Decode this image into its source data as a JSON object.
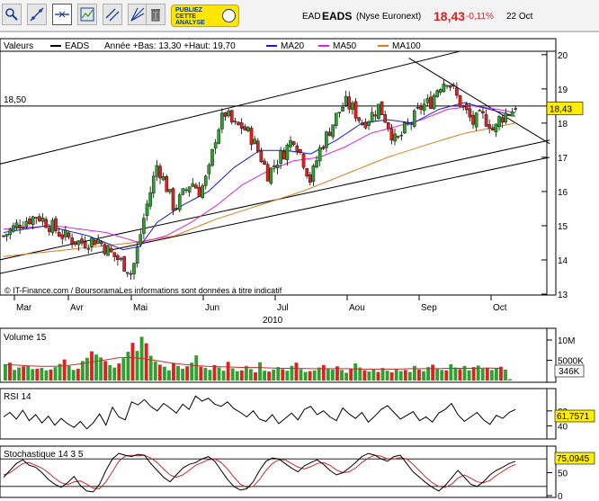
{
  "header": {
    "ticker": "EAD",
    "name": "EADS",
    "exchange": "(Nyse Euronext)",
    "price": "18,43",
    "change": "-0,11%",
    "date": "22 Oct",
    "publicity": [
      "PUBLIEZ",
      "CETTE",
      "ANALYSE"
    ]
  },
  "toolbar": {
    "buttons": [
      "zoom-icon",
      "trendline-icon",
      "horizontal-line-icon",
      "indicator-icon",
      "parallel-channel-icon",
      "fan-icon",
      "delete-icon"
    ]
  },
  "colors": {
    "up": "#2fa02f",
    "down": "#e02020",
    "ma20": "#1a1acd",
    "ma50": "#dd22dd",
    "ma100": "#e07b1a",
    "volume_avg": "#cc2a2a",
    "price_tag": "#ffee00"
  },
  "chart_data": [
    {
      "type": "candlestick",
      "legend": [
        {
          "label": "Valeurs",
          "swatch": "none"
        },
        {
          "label": "EADS",
          "swatch": "#000000"
        },
        {
          "label": "Année +Bas: 13,30 +Haut: 19,70",
          "swatch": "none"
        },
        {
          "label": "MA20",
          "swatch": "#1a1acd"
        },
        {
          "label": "MA50",
          "swatch": "#dd22dd"
        },
        {
          "label": "MA100",
          "swatch": "#e07b1a"
        }
      ],
      "y_ticks": [
        "20",
        "19",
        "18",
        "17",
        "16",
        "15",
        "14",
        "13"
      ],
      "ylim": [
        13,
        20.1
      ],
      "months": [
        "Mar",
        "Avr",
        "Mai",
        "Jun",
        "Jul",
        "Aou",
        "Sep",
        "Oct"
      ],
      "year": "2010",
      "reference_level": {
        "label": "18,50",
        "value": 18.5
      },
      "last_price_label": "18,43",
      "last_price": 18.43,
      "credit": "© IT-Finance.com / BoursoramaLes informations sont données à titre indicatif",
      "close_points": [
        [
          0,
          14.7
        ],
        [
          8,
          15.1
        ],
        [
          16,
          15.3
        ],
        [
          22,
          15.0
        ],
        [
          28,
          14.7
        ],
        [
          36,
          14.5
        ],
        [
          44,
          14.6
        ],
        [
          50,
          14.2
        ],
        [
          56,
          13.9
        ],
        [
          60,
          13.6
        ],
        [
          62,
          14.1
        ],
        [
          66,
          15.3
        ],
        [
          70,
          16.3
        ],
        [
          72,
          16.8
        ],
        [
          76,
          16.2
        ],
        [
          80,
          15.5
        ],
        [
          84,
          15.9
        ],
        [
          88,
          16.3
        ],
        [
          92,
          16.0
        ],
        [
          96,
          16.5
        ],
        [
          100,
          17.8
        ],
        [
          104,
          18.3
        ],
        [
          108,
          17.9
        ],
        [
          112,
          17.9
        ],
        [
          116,
          17.6
        ],
        [
          120,
          17.1
        ],
        [
          124,
          16.5
        ],
        [
          128,
          16.9
        ],
        [
          132,
          17.2
        ],
        [
          136,
          17.6
        ],
        [
          140,
          17.0
        ],
        [
          144,
          16.3
        ],
        [
          148,
          17.2
        ],
        [
          152,
          17.7
        ],
        [
          156,
          18.2
        ],
        [
          160,
          18.6
        ],
        [
          164,
          18.4
        ],
        [
          168,
          18.0
        ],
        [
          172,
          18.2
        ],
        [
          176,
          18.5
        ],
        [
          180,
          18.0
        ],
        [
          184,
          17.4
        ],
        [
          188,
          17.8
        ],
        [
          192,
          18.1
        ],
        [
          196,
          18.5
        ],
        [
          200,
          18.6
        ],
        [
          204,
          19.1
        ],
        [
          208,
          19.3
        ],
        [
          212,
          18.8
        ],
        [
          216,
          18.4
        ],
        [
          220,
          18.0
        ],
        [
          224,
          18.2
        ],
        [
          228,
          18.0
        ],
        [
          230,
          17.7
        ],
        [
          232,
          18.1
        ],
        [
          236,
          18.3
        ],
        [
          240,
          18.43
        ]
      ],
      "ma20_points": [
        [
          0,
          14.8
        ],
        [
          20,
          15.0
        ],
        [
          40,
          14.7
        ],
        [
          56,
          14.3
        ],
        [
          64,
          14.4
        ],
        [
          72,
          15.1
        ],
        [
          84,
          15.6
        ],
        [
          96,
          16.0
        ],
        [
          108,
          16.7
        ],
        [
          120,
          17.2
        ],
        [
          132,
          17.2
        ],
        [
          144,
          17.1
        ],
        [
          156,
          17.5
        ],
        [
          168,
          18.0
        ],
        [
          180,
          18.1
        ],
        [
          192,
          18.0
        ],
        [
          204,
          18.4
        ],
        [
          216,
          18.6
        ],
        [
          228,
          18.4
        ],
        [
          240,
          18.2
        ]
      ],
      "ma50_points": [
        [
          0,
          14.9
        ],
        [
          24,
          15.0
        ],
        [
          48,
          14.8
        ],
        [
          64,
          14.5
        ],
        [
          76,
          14.7
        ],
        [
          88,
          15.1
        ],
        [
          100,
          15.6
        ],
        [
          112,
          16.2
        ],
        [
          124,
          16.6
        ],
        [
          136,
          16.9
        ],
        [
          148,
          17.0
        ],
        [
          160,
          17.3
        ],
        [
          172,
          17.7
        ],
        [
          184,
          17.9
        ],
        [
          196,
          18.1
        ],
        [
          208,
          18.4
        ],
        [
          220,
          18.5
        ],
        [
          232,
          18.4
        ],
        [
          240,
          18.3
        ]
      ],
      "ma100_points": [
        [
          0,
          14.1
        ],
        [
          30,
          14.3
        ],
        [
          60,
          14.5
        ],
        [
          80,
          14.7
        ],
        [
          100,
          15.2
        ],
        [
          120,
          15.6
        ],
        [
          140,
          16.0
        ],
        [
          160,
          16.5
        ],
        [
          180,
          17.0
        ],
        [
          200,
          17.4
        ],
        [
          216,
          17.7
        ],
        [
          232,
          17.9
        ],
        [
          240,
          18.0
        ]
      ],
      "trendlines": [
        {
          "from": [
            -2,
            16.8
          ],
          "to": [
            214,
            20.1
          ]
        },
        {
          "from": [
            -2,
            14.0
          ],
          "to": [
            256,
            17.5
          ]
        },
        {
          "from": [
            -2,
            13.6
          ],
          "to": [
            256,
            17.0
          ]
        },
        {
          "from": [
            190,
            19.9
          ],
          "to": [
            256,
            17.4
          ]
        }
      ]
    },
    {
      "type": "bar",
      "title": "Volume 15",
      "y_ticks": [
        "10M",
        "5000K"
      ],
      "ylim": [
        0,
        12000000
      ],
      "last_value_label": "346K",
      "values": [
        3800000,
        4400000,
        2600000,
        3200000,
        3500000,
        3700000,
        2800000,
        2900000,
        3100000,
        2500000,
        2700000,
        3300000,
        4100000,
        5200000,
        3600000,
        2600000,
        2900000,
        4800000,
        5600000,
        7200000,
        6400000,
        5700000,
        4800000,
        3800000,
        3200000,
        4200000,
        5500000,
        7100000,
        9300000,
        7300000,
        10800000,
        9200000,
        6100000,
        4700000,
        3900000,
        3400000,
        2500000,
        4300000,
        3600000,
        2900000,
        3500000,
        4400000,
        6200000,
        3400000,
        3100000,
        2600000,
        3800000,
        3200000,
        2400000,
        4600000,
        3000000,
        2300000,
        2500000,
        3600000,
        2800000,
        2000000,
        4500000,
        2400000,
        2200000,
        2700000,
        3300000,
        2800000,
        2400000,
        3600000,
        4400000,
        2800000,
        2100000,
        2300000,
        2500000,
        3200000,
        3800000,
        2900000,
        2700000,
        3500000,
        2600000,
        1900000,
        2800000,
        4200000,
        3200000,
        2500000,
        2200000,
        2700000,
        2100000,
        3100000,
        2400000,
        2000000,
        2800000,
        2300000,
        2600000,
        2100000,
        3600000,
        2700000,
        2300000,
        3300000,
        3900000,
        3000000,
        2600000,
        2500000,
        4000000,
        3200000,
        2800000,
        3600000,
        2500000,
        3300000,
        3700000,
        2900000,
        3100000,
        2600000,
        3000000,
        3400000,
        2700000,
        346000
      ],
      "average": [
        3900000,
        3800000,
        3600000,
        3500000,
        3500000,
        3700000,
        4100000,
        4600000,
        5100000,
        5600000,
        5700000,
        5400000,
        4900000,
        4400000,
        4000000,
        3700000,
        3500000,
        3400000,
        3300000,
        3200000,
        3200000,
        3100000,
        3000000,
        3000000,
        2900000,
        2900000,
        2900000,
        2900000,
        2800000,
        2800000,
        2800000,
        2800000,
        2900000,
        2900000,
        2900000,
        3000000,
        3000000,
        3000000,
        3100000,
        3000000
      ]
    },
    {
      "type": "line",
      "title": "RSI 14",
      "y_ticks": [
        "60",
        "40"
      ],
      "ylim": [
        25,
        85
      ],
      "last_value_label": "61,7571",
      "values": [
        52,
        58,
        49,
        61,
        47,
        55,
        44,
        53,
        41,
        50,
        43,
        38,
        46,
        36,
        44,
        56,
        41,
        65,
        52,
        48,
        72,
        68,
        75,
        66,
        60,
        70,
        64,
        57,
        69,
        62,
        80,
        73,
        77,
        69,
        66,
        72,
        63,
        58,
        52,
        60,
        49,
        46,
        55,
        43,
        50,
        57,
        48,
        62,
        66,
        55,
        60,
        52,
        47,
        64,
        56,
        50,
        58,
        45,
        53,
        62,
        67,
        58,
        49,
        54,
        59,
        47,
        52,
        45,
        57,
        62,
        70,
        55,
        46,
        52,
        58,
        48,
        42,
        54,
        50,
        58,
        62
      ]
    },
    {
      "type": "line",
      "title": "Stochastique 14 3 5",
      "y_ticks": [
        "50",
        "0"
      ],
      "ylim": [
        0,
        100
      ],
      "last_value_label": "75,0945",
      "values_k": [
        40,
        55,
        70,
        78,
        66,
        62,
        50,
        35,
        25,
        18,
        28,
        42,
        22,
        10,
        8,
        25,
        55,
        80,
        92,
        88,
        85,
        90,
        88,
        70,
        55,
        40,
        30,
        45,
        60,
        68,
        72,
        80,
        85,
        75,
        55,
        35,
        20,
        12,
        15,
        30,
        55,
        75,
        82,
        80,
        70,
        60,
        52,
        65,
        72,
        78,
        68,
        55,
        45,
        50,
        60,
        72,
        85,
        92,
        88,
        80,
        75,
        85,
        88,
        70,
        52,
        40,
        28,
        18,
        10,
        22,
        38,
        55,
        40,
        25,
        20,
        30,
        45,
        55,
        62,
        70,
        75
      ],
      "values_d": [
        45,
        50,
        60,
        70,
        72,
        66,
        60,
        50,
        38,
        28,
        24,
        30,
        32,
        25,
        16,
        15,
        30,
        52,
        75,
        86,
        88,
        87,
        88,
        82,
        72,
        58,
        45,
        40,
        45,
        55,
        66,
        72,
        78,
        80,
        72,
        58,
        40,
        25,
        18,
        20,
        35,
        55,
        70,
        78,
        78,
        70,
        62,
        58,
        63,
        70,
        72,
        66,
        56,
        50,
        52,
        60,
        72,
        82,
        88,
        86,
        80,
        80,
        83,
        80,
        68,
        54,
        40,
        28,
        20,
        18,
        25,
        38,
        45,
        38,
        30,
        28,
        33,
        44,
        53,
        62,
        68
      ],
      "levels": [
        80,
        20
      ]
    }
  ]
}
